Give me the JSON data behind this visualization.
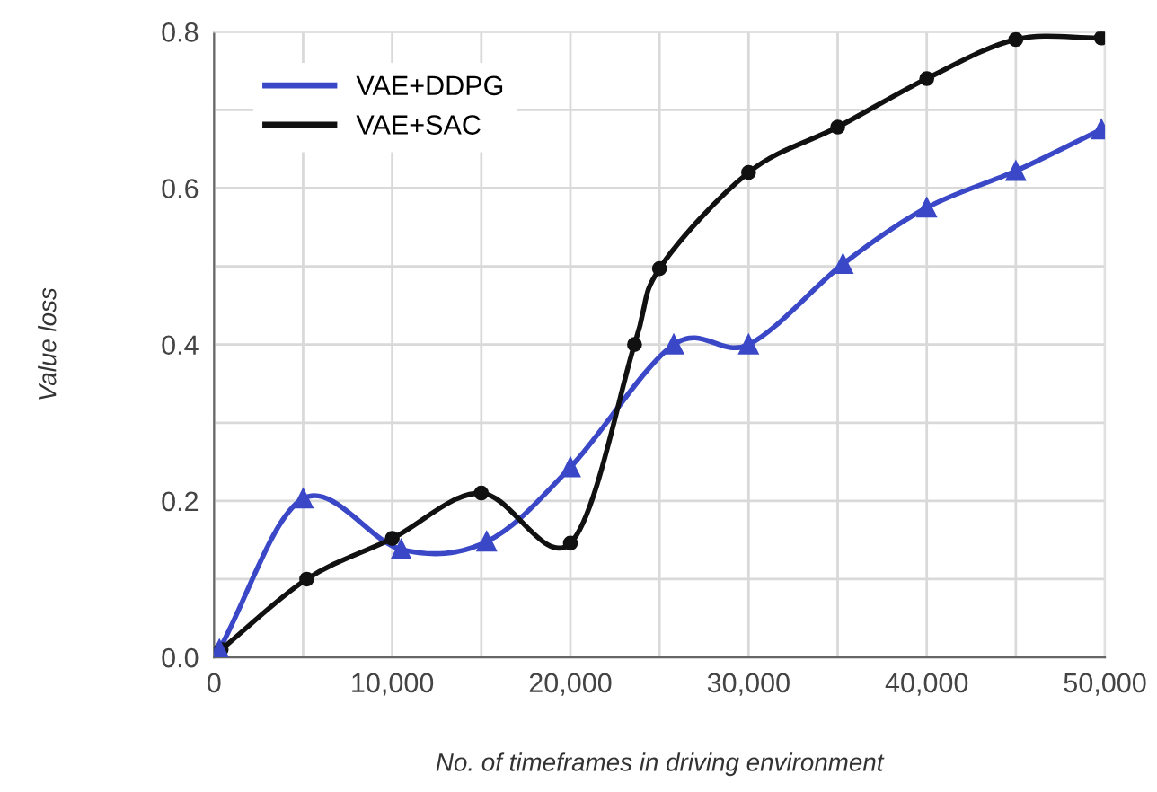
{
  "chart_data": {
    "type": "line",
    "xlabel": "No. of timeframes in driving environment",
    "ylabel": "Value loss",
    "xlim": [
      0,
      50000
    ],
    "ylim": [
      0,
      0.8
    ],
    "xticks": [
      {
        "value": 0,
        "label": "0"
      },
      {
        "value": 5000,
        "label": null
      },
      {
        "value": 10000,
        "label": "10,000"
      },
      {
        "value": 15000,
        "label": null
      },
      {
        "value": 20000,
        "label": "20,000"
      },
      {
        "value": 25000,
        "label": null
      },
      {
        "value": 30000,
        "label": "30,000"
      },
      {
        "value": 35000,
        "label": null
      },
      {
        "value": 40000,
        "label": "40,000"
      },
      {
        "value": 45000,
        "label": null
      },
      {
        "value": 50000,
        "label": "50,000"
      }
    ],
    "yticks": [
      {
        "value": 0,
        "label": "0.0"
      },
      {
        "value": 0.1,
        "label": null
      },
      {
        "value": 0.2,
        "label": "0.2"
      },
      {
        "value": 0.3,
        "label": null
      },
      {
        "value": 0.4,
        "label": "0.4"
      },
      {
        "value": 0.5,
        "label": null
      },
      {
        "value": 0.6,
        "label": "0.6"
      },
      {
        "value": 0.7,
        "label": null
      },
      {
        "value": 0.8,
        "label": "0.8"
      }
    ],
    "grid": true,
    "legend": "top left",
    "series": [
      {
        "name": "VAE+DDPG",
        "color": "#3a48c8",
        "marker": "triangle",
        "x": [
          300,
          5000,
          10500,
          15300,
          20000,
          25800,
          30000,
          35300,
          40000,
          45000,
          49800
        ],
        "values": [
          0.01,
          0.203,
          0.138,
          0.148,
          0.243,
          0.4,
          0.4,
          0.503,
          0.575,
          0.622,
          0.675
        ]
      },
      {
        "name": "VAE+SAC",
        "color": "#111111",
        "marker": "circle",
        "x": [
          400,
          5200,
          10000,
          15000,
          20000,
          23600,
          25000,
          30000,
          35000,
          40000,
          45000,
          49800
        ],
        "values": [
          0.01,
          0.1,
          0.152,
          0.21,
          0.146,
          0.4,
          0.497,
          0.62,
          0.678,
          0.74,
          0.79,
          0.792
        ]
      }
    ]
  }
}
